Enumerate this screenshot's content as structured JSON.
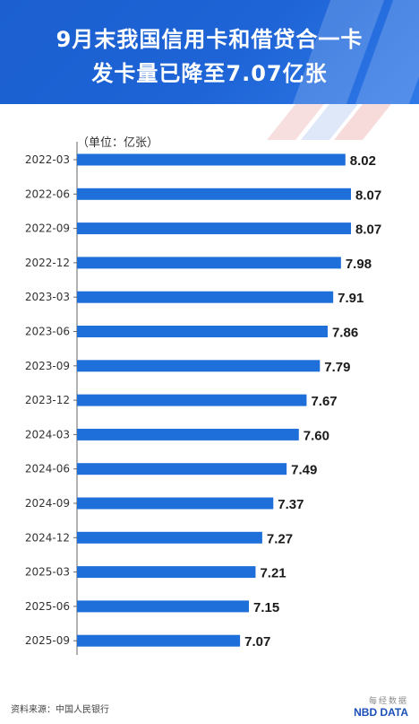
{
  "header": {
    "title_line1": "9月末我国信用卡和借贷合一卡",
    "title_line2": "发卡量已降至7.07亿张"
  },
  "colors": {
    "bar": "#1e6fd9",
    "header": "#1e64d6",
    "accent_red": "#e8433f"
  },
  "chart_data": {
    "type": "bar",
    "orientation": "horizontal",
    "unit_label": "（单位：亿张）",
    "categories": [
      "2022-03",
      "2022-06",
      "2022-09",
      "2022-12",
      "2023-03",
      "2023-06",
      "2023-09",
      "2023-12",
      "2024-03",
      "2024-06",
      "2024-09",
      "2024-12",
      "2025-03",
      "2025-06",
      "2025-09"
    ],
    "values": [
      8.02,
      8.07,
      8.07,
      7.98,
      7.91,
      7.86,
      7.79,
      7.67,
      7.6,
      7.49,
      7.37,
      7.27,
      7.21,
      7.15,
      7.07
    ],
    "value_labels": [
      "8.02",
      "8.07",
      "8.07",
      "7.98",
      "7.91",
      "7.86",
      "7.79",
      "7.67",
      "7.60",
      "7.49",
      "7.37",
      "7.27",
      "7.21",
      "7.15",
      "7.07"
    ],
    "xlim": [
      5.6,
      8.07
    ],
    "grid": false,
    "legend": "none"
  },
  "footer": {
    "source": "资料来源：中国人民银行",
    "logo_cn": "每经数据",
    "logo_en": "NBD DATA"
  }
}
